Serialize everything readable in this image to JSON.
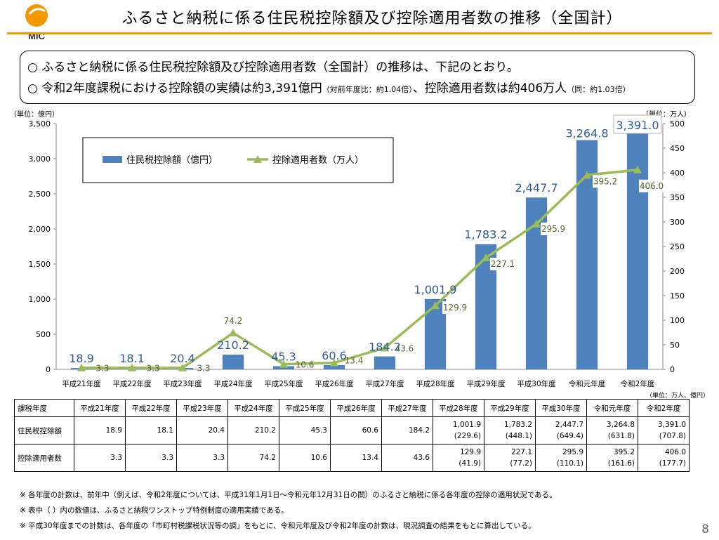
{
  "header": {
    "logo_text": "MIC",
    "title": "ふるさと納税に係る住民税控除額及び控除適用者数の推移（全国計）"
  },
  "summary": {
    "line1": "○ ふるさと納税に係る住民税控除額及び控除適用者数（全国計）の推移は、下記のとおり。",
    "line2_a": "○ 令和2年度課税における控除額の実績は約3,391億円",
    "line2_b": "（対前年度比：約1.04倍）",
    "line2_c": "、控除適用者数は約406万人",
    "line2_d": "（同：約1.03倍）"
  },
  "units": {
    "left": "（単位：億円）",
    "right": "（単位：万人）",
    "table_note": "（単位：万人、億円）"
  },
  "chart_data": {
    "type": "bar",
    "categories": [
      "平成21年度",
      "平成22年度",
      "平成23年度",
      "平成24年度",
      "平成25年度",
      "平成26年度",
      "平成27年度",
      "平成28年度",
      "平成29年度",
      "平成30年度",
      "令和元年度",
      "令和2年度"
    ],
    "series": [
      {
        "name": "住民税控除額（億円）",
        "type": "bar",
        "axis": "left",
        "color": "#4f81bd",
        "values": [
          18.9,
          18.1,
          20.4,
          210.2,
          45.3,
          60.6,
          184.2,
          1001.9,
          1783.2,
          2447.7,
          3264.8,
          3391.0
        ],
        "labels": [
          "18.9",
          "18.1",
          "20.4",
          "210.2",
          "45.3",
          "60.6",
          "184.2",
          "1,001.9",
          "1,783.2",
          "2,447.7",
          "3,264.8",
          "3,391.0"
        ]
      },
      {
        "name": "控除適用者数（万人）",
        "type": "line",
        "axis": "right",
        "color": "#9bbb59",
        "values": [
          3.3,
          3.3,
          3.3,
          74.2,
          10.6,
          13.4,
          43.6,
          129.9,
          227.1,
          295.9,
          395.2,
          406.0
        ],
        "labels": [
          "3.3",
          "3.3",
          "3.3",
          "74.2",
          "10.6",
          "13.4",
          "43.6",
          "129.9",
          "227.1",
          "295.9",
          "395.2",
          "406.0"
        ]
      }
    ],
    "ylim_left": [
      0,
      3500
    ],
    "yticks_left": [
      "0",
      "500",
      "1,000",
      "1,500",
      "2,000",
      "2,500",
      "3,000",
      "3,500"
    ],
    "ylim_right": [
      0,
      500
    ],
    "yticks_right": [
      "0",
      "50",
      "100",
      "150",
      "200",
      "250",
      "300",
      "350",
      "400",
      "450",
      "500"
    ],
    "legend_position": "top-left",
    "grid": false
  },
  "table": {
    "header": [
      "課税年度",
      "平成21年度",
      "平成22年度",
      "平成23年度",
      "平成24年度",
      "平成25年度",
      "平成26年度",
      "平成27年度",
      "平成28年度",
      "平成29年度",
      "平成30年度",
      "令和元年度",
      "令和2年度"
    ],
    "rows": [
      {
        "label": "住民税控除額",
        "values": [
          "18.9",
          "18.1",
          "20.4",
          "210.2",
          "45.3",
          "60.6",
          "184.2",
          "1,001.9",
          "1,783.2",
          "2,447.7",
          "3,264.8",
          "3,391.0"
        ],
        "sub": [
          "",
          "",
          "",
          "",
          "",
          "",
          "",
          "(229.6)",
          "(448.1)",
          "(649.4)",
          "(631.8)",
          "(707.8)"
        ]
      },
      {
        "label": "控除適用者数",
        "values": [
          "3.3",
          "3.3",
          "3.3",
          "74.2",
          "10.6",
          "13.4",
          "43.6",
          "129.9",
          "227.1",
          "295.9",
          "395.2",
          "406.0"
        ],
        "sub": [
          "",
          "",
          "",
          "",
          "",
          "",
          "",
          "(41.9)",
          "(77.2)",
          "(110.1)",
          "(161.6)",
          "(177.7)"
        ]
      }
    ]
  },
  "notes": [
    "※ 各年度の計数は、前年中（例えば、令和2年度については、平成31年1月1日～令和元年12月31日の間）のふるさと納税に係る各年度の控除の適用状況である。",
    "※ 表中（ ）内の数値は、ふるさと納税ワンストップ特例制度の適用実績である。",
    "※ 平成30年度までの計数は、各年度の「市町村税課税状況等の調」をもとに、令和元年度及び令和2年度の計数は、現況調査の結果をもとに算出している。"
  ],
  "page_number": "8"
}
